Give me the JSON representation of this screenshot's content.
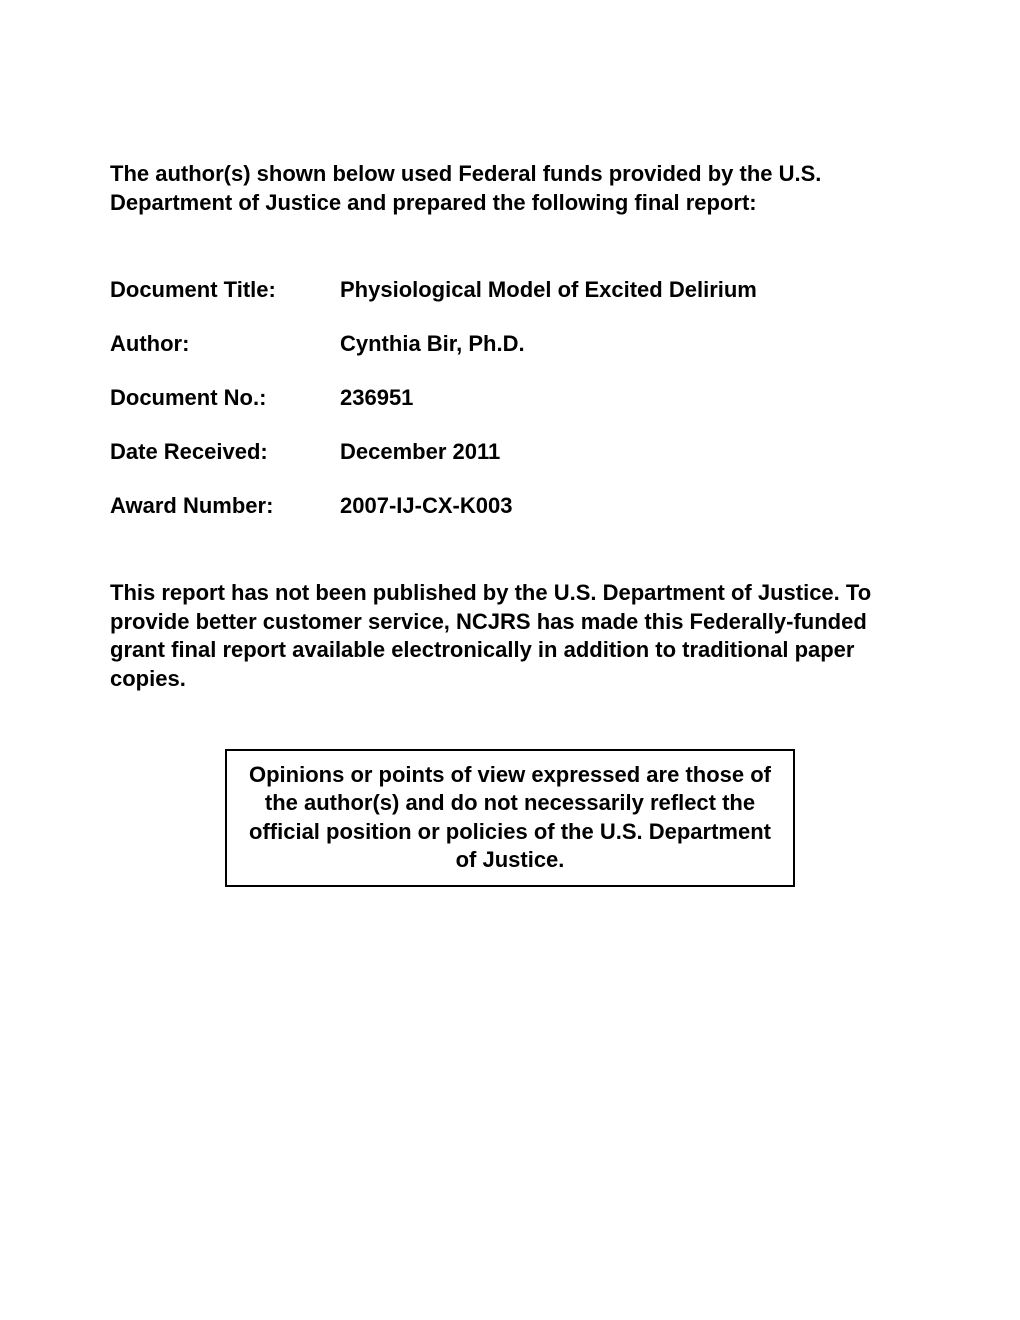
{
  "intro": "The author(s) shown below used Federal funds provided by the U.S. Department of Justice and prepared the following final report:",
  "metadata": {
    "documentTitle": {
      "label": "Document Title:",
      "value": "Physiological Model of Excited Delirium"
    },
    "author": {
      "label": "Author:",
      "value": "Cynthia Bir, Ph.D."
    },
    "documentNo": {
      "label": "Document No.:",
      "value": "236951"
    },
    "dateReceived": {
      "label": "Date Received:",
      "value": "December 2011"
    },
    "awardNumber": {
      "label": "Award Number:",
      "value": "2007-IJ-CX-K003"
    }
  },
  "disclaimer": "This report has not been published by the U.S. Department of Justice. To provide better customer service, NCJRS has made this Federally-funded grant final report available electronically in addition to traditional paper copies.",
  "opinionBox": "Opinions or points of view expressed are those of the author(s) and do not necessarily reflect the official position or policies of the U.S. Department of Justice."
}
